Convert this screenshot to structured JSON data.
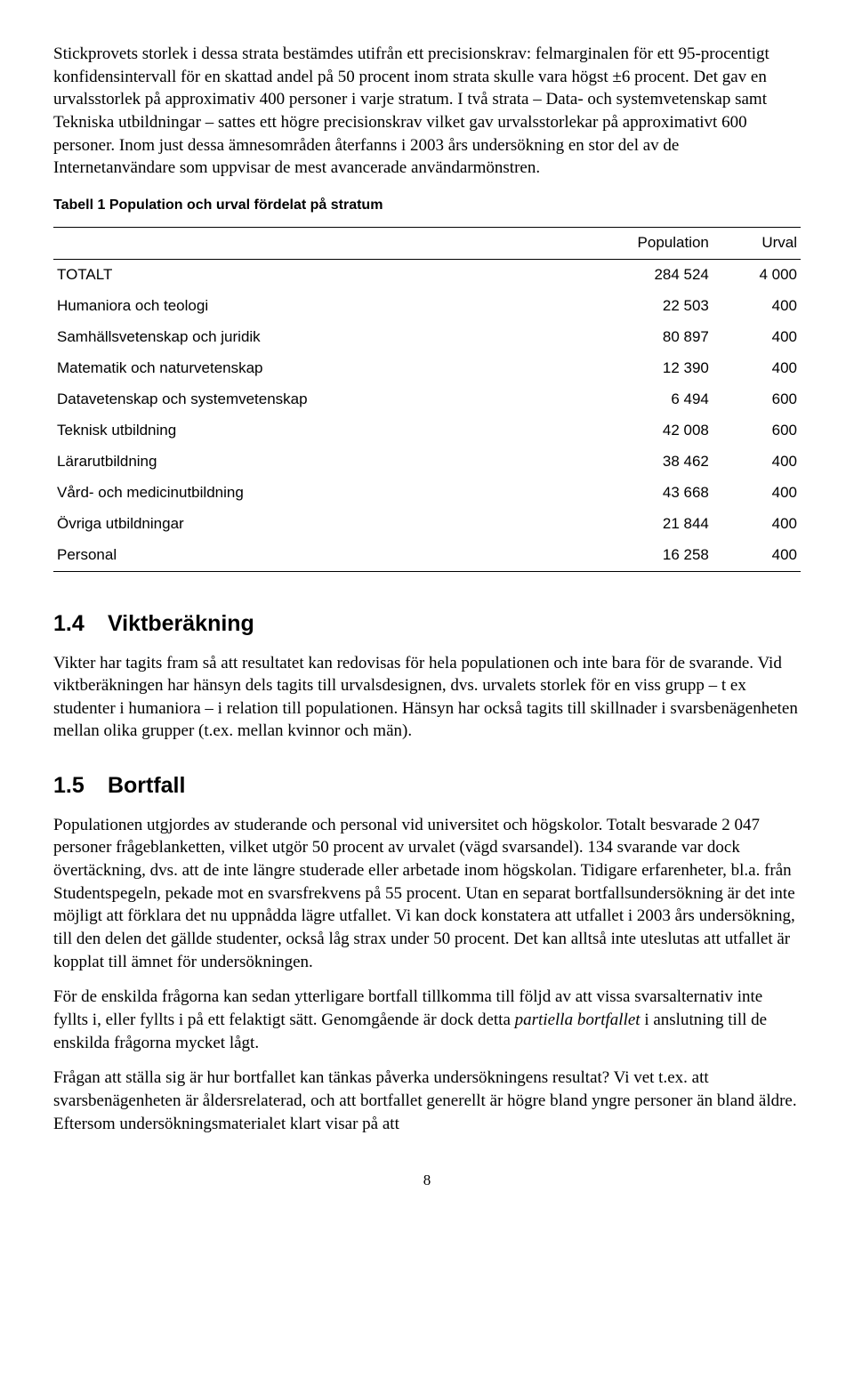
{
  "para1": "Stickprovets storlek i dessa strata bestämdes utifrån ett precisionskrav: felmarginalen för ett 95-procentigt konfidensintervall för en skattad andel på 50 procent inom strata skulle vara högst ±6 procent. Det gav en urvalsstorlek på approximativ 400 personer i varje stratum. I två strata – Data- och systemvetenskap samt Tekniska utbildningar – sattes ett högre precisionskrav vilket gav urvalsstorlekar på approximativt 600 personer. Inom just dessa ämnesområden återfanns i 2003 års undersökning en stor del av de Internetanvändare som uppvisar de mest avancerade användarmönstren.",
  "table": {
    "caption": "Tabell 1 Population och urval fördelat på stratum",
    "headers": {
      "label": "",
      "population": "Population",
      "urval": "Urval"
    },
    "rows": [
      {
        "label": "TOTALT",
        "population": "284 524",
        "urval": "4 000"
      },
      {
        "label": "Humaniora och teologi",
        "population": "22 503",
        "urval": "400"
      },
      {
        "label": "Samhällsvetenskap och juridik",
        "population": "80 897",
        "urval": "400"
      },
      {
        "label": "Matematik och naturvetenskap",
        "population": "12 390",
        "urval": "400"
      },
      {
        "label": "Datavetenskap och systemvetenskap",
        "population": "6 494",
        "urval": "600"
      },
      {
        "label": "Teknisk utbildning",
        "population": "42 008",
        "urval": "600"
      },
      {
        "label": "Lärarutbildning",
        "population": "38 462",
        "urval": "400"
      },
      {
        "label": "Vård- och medicinutbildning",
        "population": "43 668",
        "urval": "400"
      },
      {
        "label": "Övriga utbildningar",
        "population": "21 844",
        "urval": "400"
      },
      {
        "label": "Personal",
        "population": "16 258",
        "urval": "400"
      }
    ]
  },
  "section14": {
    "num": "1.4",
    "title": "Viktberäkning",
    "para": "Vikter har tagits fram så att resultatet kan redovisas för hela populationen och inte bara för de svarande. Vid viktberäkningen har hänsyn dels tagits till urvalsdesignen, dvs. urvalets storlek för en viss grupp – t ex studenter i humaniora – i relation till populationen. Hänsyn har också tagits till skillnader i svarsbenägenheten mellan olika grupper (t.ex. mellan kvinnor och män)."
  },
  "section15": {
    "num": "1.5",
    "title": "Bortfall",
    "para1": "Populationen utgjordes av studerande och personal vid universitet och högskolor. Totalt besvarade 2 047 personer frågeblanketten, vilket utgör 50 procent av urvalet (vägd svarsandel). 134 svarande var dock övertäckning, dvs. att de inte längre studerade eller arbetade inom högskolan. Tidigare erfarenheter, bl.a. från Studentspegeln, pekade mot en svarsfrekvens på 55 procent. Utan en separat bortfallsundersökning är det inte möjligt att förklara det nu uppnådda lägre utfallet. Vi kan dock konstatera att utfallet i 2003 års undersökning, till den delen det gällde studenter, också låg strax under 50 procent. Det kan alltså inte uteslutas att utfallet är kopplat till ämnet för undersökningen.",
    "para2_pre": "För de enskilda frågorna kan sedan ytterligare bortfall tillkomma till följd av att vissa svarsalternativ inte fyllts i, eller fyllts i på ett felaktigt sätt. Genomgående är dock detta ",
    "para2_italic": "partiella bortfallet",
    "para2_post": " i anslutning till de enskilda frågorna mycket lågt.",
    "para3": "Frågan att ställa sig är hur bortfallet kan tänkas påverka undersökningens resultat? Vi vet t.ex. att svarsbenägenheten är åldersrelaterad, och att bortfallet generellt är högre bland yngre personer än bland äldre. Eftersom undersökningsmaterialet klart visar på att"
  },
  "pageNumber": "8"
}
